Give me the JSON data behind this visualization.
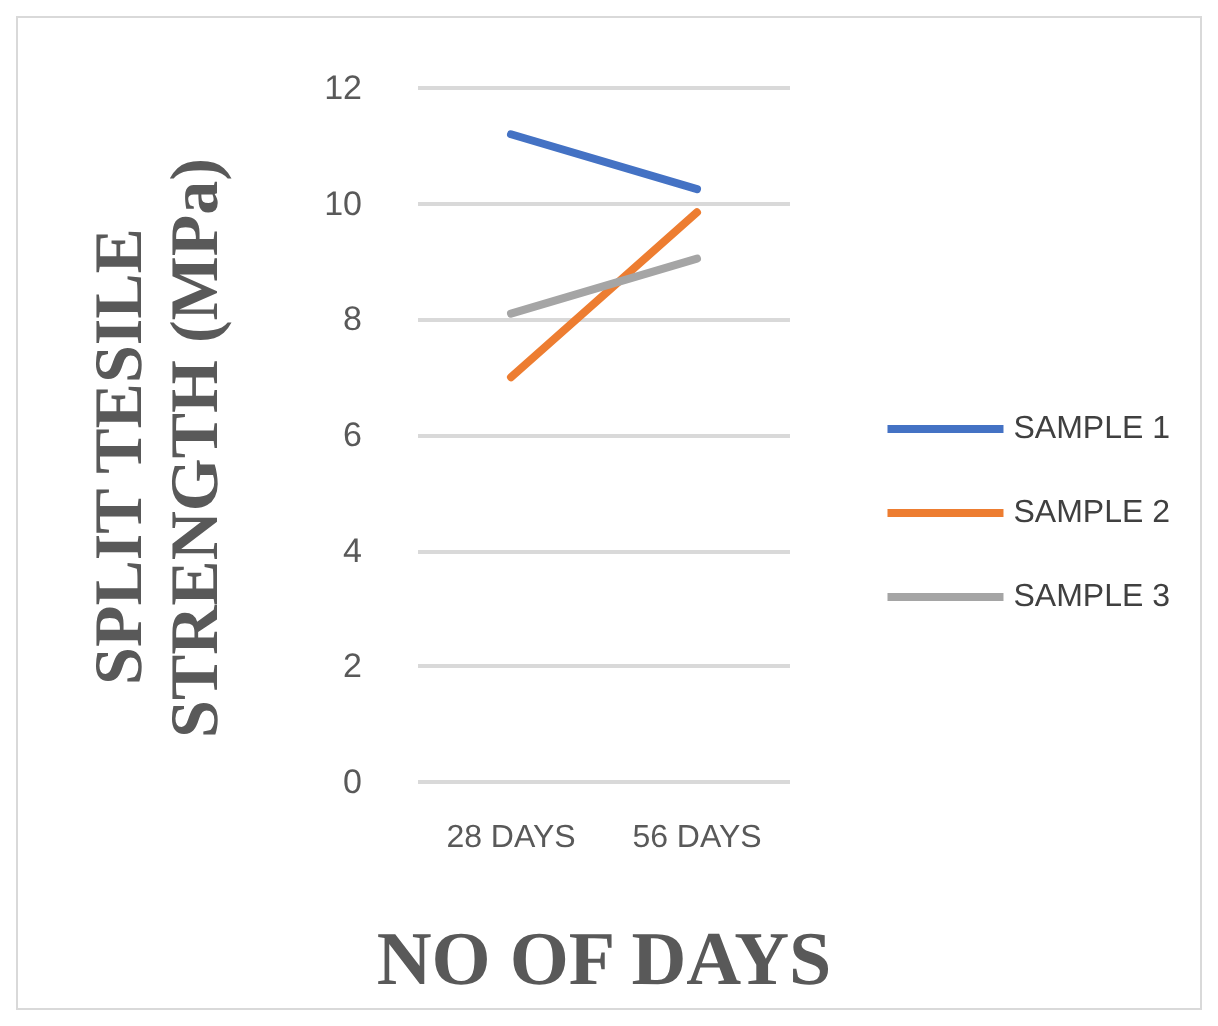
{
  "chart_data": {
    "type": "line",
    "categories": [
      "28 DAYS",
      "56 DAYS"
    ],
    "series": [
      {
        "name": "SAMPLE 1",
        "color": "#4472c4",
        "values": [
          11.2,
          10.25
        ]
      },
      {
        "name": "SAMPLE 2",
        "color": "#ed7d31",
        "values": [
          7.0,
          9.85
        ]
      },
      {
        "name": "SAMPLE 3",
        "color": "#a5a5a5",
        "values": [
          8.1,
          9.05
        ]
      }
    ],
    "xlabel": "NO OF DAYS",
    "ylabel": "SPLIT TESILE STRENGTH (MPa)",
    "ylim": [
      0,
      12
    ],
    "yticks": [
      0,
      2,
      4,
      6,
      8,
      10,
      12
    ],
    "grid": "y",
    "legend": "right",
    "marker": "none",
    "line_style": "solid"
  }
}
